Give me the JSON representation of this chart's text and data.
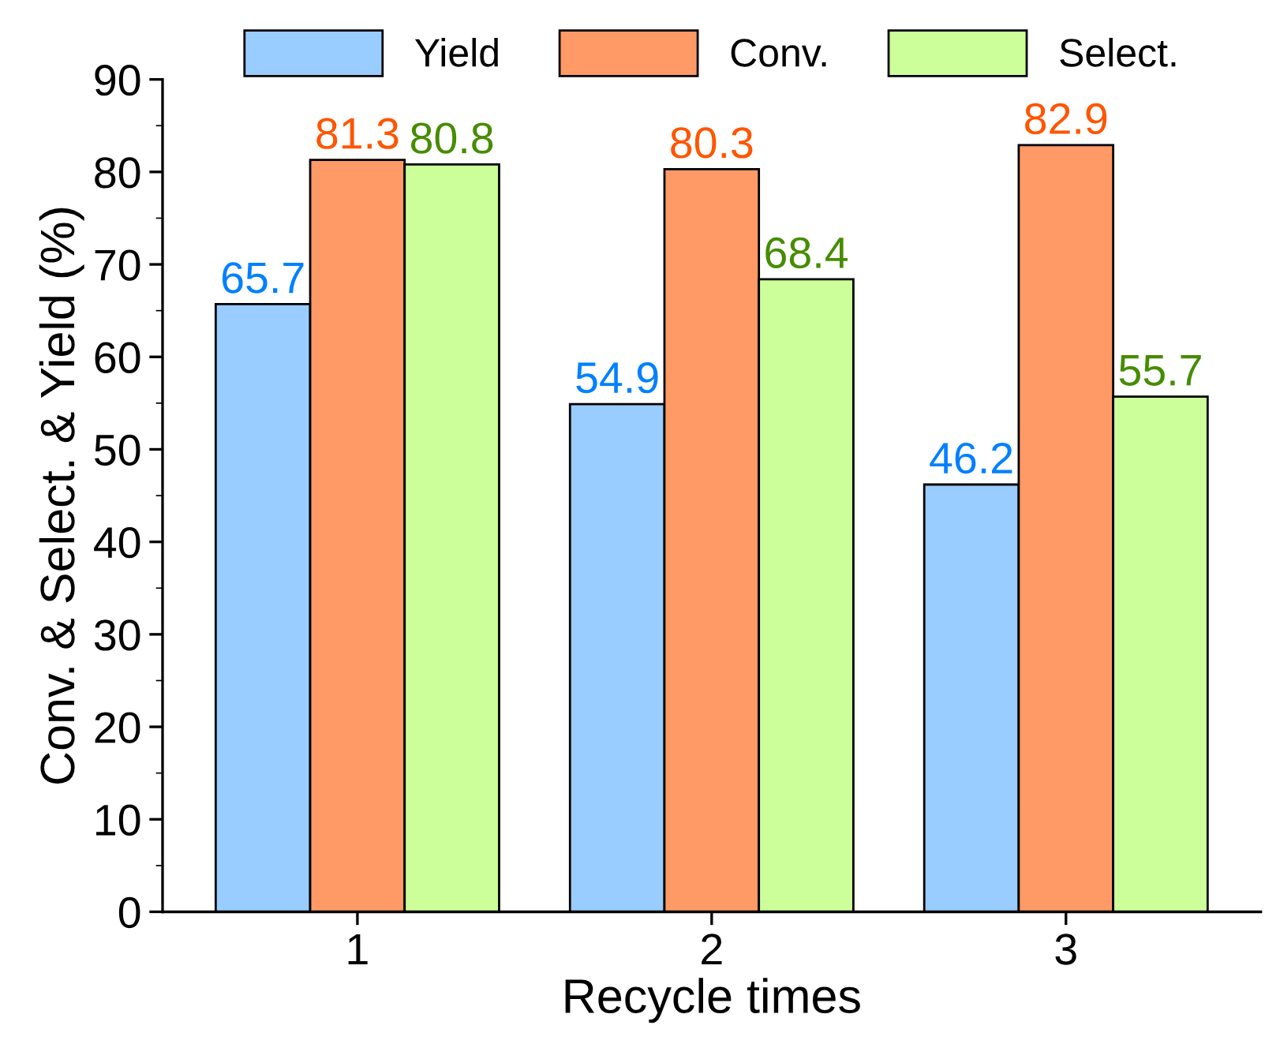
{
  "chart_data": {
    "type": "bar",
    "xlabel": "Recycle times",
    "ylabel": "Conv. & Select. & Yield (%)",
    "categories": [
      "1",
      "2",
      "3"
    ],
    "series": [
      {
        "name": "Yield",
        "color": "#99ccff",
        "values": [
          65.7,
          54.9,
          46.2
        ]
      },
      {
        "name": "Conv.",
        "color": "#ff9966",
        "values": [
          81.3,
          80.3,
          82.9
        ]
      },
      {
        "name": "Select.",
        "color": "#ccff99",
        "values": [
          80.8,
          68.4,
          55.7
        ]
      }
    ],
    "ylim": [
      0,
      90
    ],
    "yticks": [
      0,
      10,
      20,
      30,
      40,
      50,
      60,
      70,
      80,
      90
    ],
    "data_labels": true,
    "legend": "top",
    "grid": false
  }
}
